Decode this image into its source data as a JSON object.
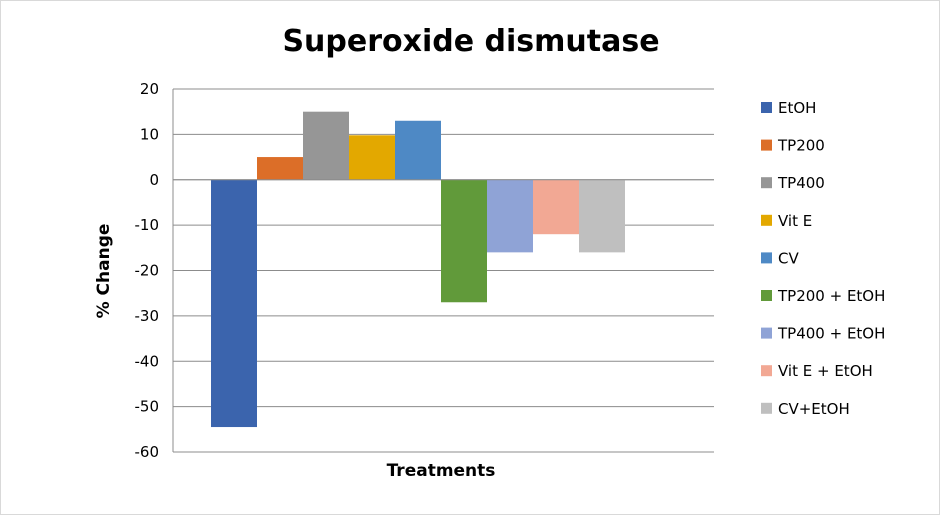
{
  "chart_data": {
    "type": "bar",
    "title": "Superoxide dismutase",
    "xlabel": "Treatments",
    "ylabel": "% Change",
    "ylim": [
      -60,
      20
    ],
    "yticks": [
      20,
      10,
      0,
      -10,
      -20,
      -30,
      -40,
      -50,
      -60
    ],
    "grid": true,
    "legend_position": "right",
    "series": [
      {
        "name": "EtOH",
        "value": -54.5,
        "color": "#3b64ad"
      },
      {
        "name": "TP200",
        "value": 5,
        "color": "#dc6e28"
      },
      {
        "name": "TP400",
        "value": 15,
        "color": "#969696"
      },
      {
        "name": "Vit E",
        "value": 9.8,
        "color": "#e3a800"
      },
      {
        "name": "CV",
        "value": 13,
        "color": "#4e89c5"
      },
      {
        "name": "TP200 + EtOH",
        "value": -27,
        "color": "#619a3a"
      },
      {
        "name": "TP400 + EtOH",
        "value": -16,
        "color": "#8fa3d6"
      },
      {
        "name": "Vit E + EtOH",
        "value": -12,
        "color": "#f2a894"
      },
      {
        "name": "CV+EtOH",
        "value": -16,
        "color": "#bfbfbf"
      }
    ]
  }
}
